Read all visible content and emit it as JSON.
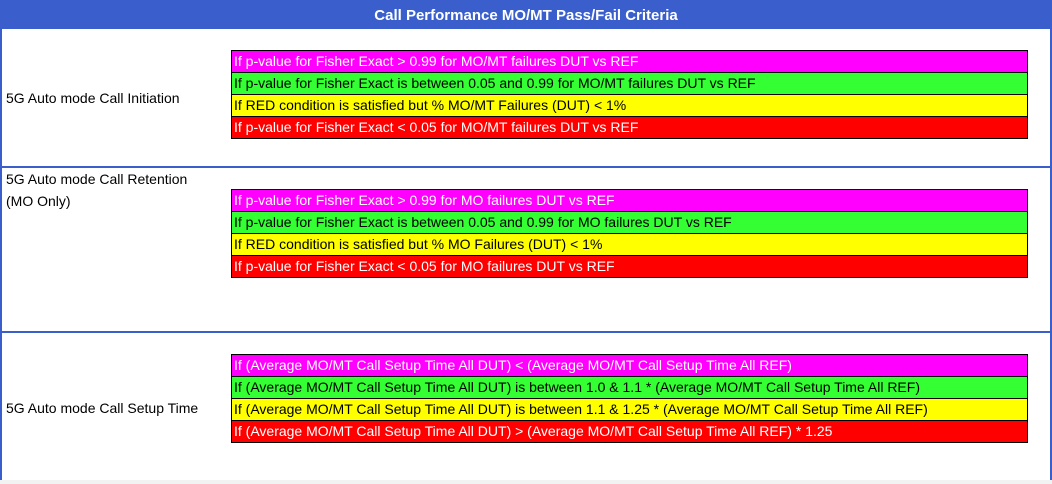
{
  "title": "Call Performance MO/MT Pass/Fail Criteria",
  "sections": [
    {
      "label": "5G Auto mode Call Initiation",
      "rows": [
        {
          "text": "If p-value for Fisher Exact > 0.99 for MO/MT failures DUT vs REF",
          "color": "#ff00ff"
        },
        {
          "text": "If p-value for Fisher Exact is between 0.05 and 0.99 for MO/MT failures DUT vs REF",
          "color": "#33ff33"
        },
        {
          "text": "If RED condition is satisfied but % MO/MT Failures (DUT) < 1%",
          "color": "#ffff00"
        },
        {
          "text": "If p-value for Fisher Exact < 0.05 for MO/MT failures DUT vs REF",
          "color": "#ff0000"
        }
      ]
    },
    {
      "label_line1": "5G Auto mode Call Retention",
      "label_line2": "(MO Only)",
      "rows": [
        {
          "text": "If p-value for Fisher Exact > 0.99 for MO failures DUT vs REF",
          "color": "#ff00ff"
        },
        {
          "text": "If p-value for Fisher Exact is between 0.05 and 0.99 for MO failures DUT vs REF",
          "color": "#33ff33"
        },
        {
          "text": "If RED condition is satisfied but % MO Failures (DUT) < 1%",
          "color": "#ffff00"
        },
        {
          "text": "If p-value for Fisher Exact < 0.05 for MO failures DUT vs REF",
          "color": "#ff0000"
        }
      ]
    },
    {
      "label": "5G Auto mode Call Setup Time",
      "rows": [
        {
          "text": "If (Average MO/MT Call Setup Time All DUT) < (Average MO/MT Call Setup Time All REF)",
          "color": "#ff00ff"
        },
        {
          "text": "If (Average MO/MT Call Setup Time All DUT) is between 1.0 & 1.1 * (Average MO/MT Call Setup Time All REF)",
          "color": "#33ff33"
        },
        {
          "text": "If (Average MO/MT Call Setup Time All DUT) is between 1.1 & 1.25 * (Average MO/MT Call Setup Time All REF)",
          "color": "#ffff00"
        },
        {
          "text": "If (Average MO/MT Call Setup Time All DUT) > (Average MO/MT Call Setup Time All REF) * 1.25",
          "color": "#ff0000"
        }
      ]
    }
  ]
}
